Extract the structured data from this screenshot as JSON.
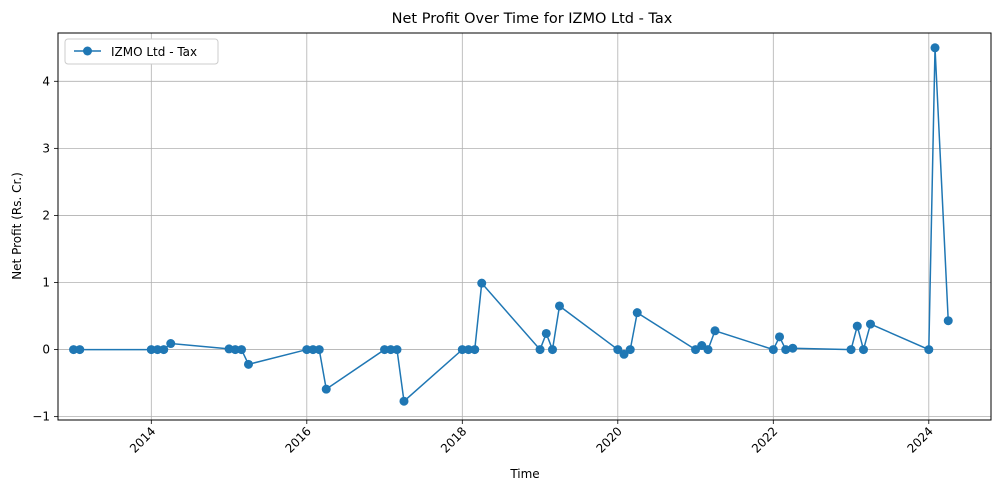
{
  "chart_data": {
    "type": "line",
    "title": "Net Profit Over Time for IZMO Ltd - Tax",
    "xlabel": "Time",
    "ylabel": "Net Profit (Rs. Cr.)",
    "xlim": [
      2012.8,
      2024.8
    ],
    "ylim": [
      -1.05,
      4.72
    ],
    "x_ticks": [
      2014,
      2016,
      2018,
      2020,
      2022,
      2024
    ],
    "y_ticks": [
      -1,
      0,
      1,
      2,
      3,
      4
    ],
    "grid": true,
    "legend_position": "top-left",
    "series": [
      {
        "name": "IZMO Ltd - Tax",
        "color": "#1f77b4",
        "x": [
          2013.0,
          2013.08,
          2014.0,
          2014.08,
          2014.16,
          2014.25,
          2015.0,
          2015.08,
          2015.16,
          2015.25,
          2016.0,
          2016.08,
          2016.16,
          2016.25,
          2017.0,
          2017.08,
          2017.16,
          2017.25,
          2018.0,
          2018.08,
          2018.16,
          2018.25,
          2019.0,
          2019.08,
          2019.16,
          2019.25,
          2020.0,
          2020.08,
          2020.16,
          2020.25,
          2021.0,
          2021.08,
          2021.16,
          2021.25,
          2022.0,
          2022.08,
          2022.16,
          2022.25,
          2023.0,
          2023.08,
          2023.16,
          2023.25,
          2024.0,
          2024.08,
          2024.25
        ],
        "values": [
          0.0,
          0.0,
          0.0,
          0.0,
          0.0,
          0.09,
          0.01,
          0.0,
          0.0,
          -0.22,
          0.0,
          0.0,
          0.0,
          -0.59,
          0.0,
          0.0,
          0.0,
          -0.77,
          0.0,
          0.0,
          0.0,
          0.99,
          0.0,
          0.24,
          0.0,
          0.65,
          0.0,
          -0.07,
          0.0,
          0.55,
          0.0,
          0.06,
          0.0,
          0.28,
          0.0,
          0.19,
          0.0,
          0.02,
          0.0,
          0.35,
          0.0,
          0.38,
          0.0,
          4.5,
          0.43
        ]
      }
    ]
  }
}
